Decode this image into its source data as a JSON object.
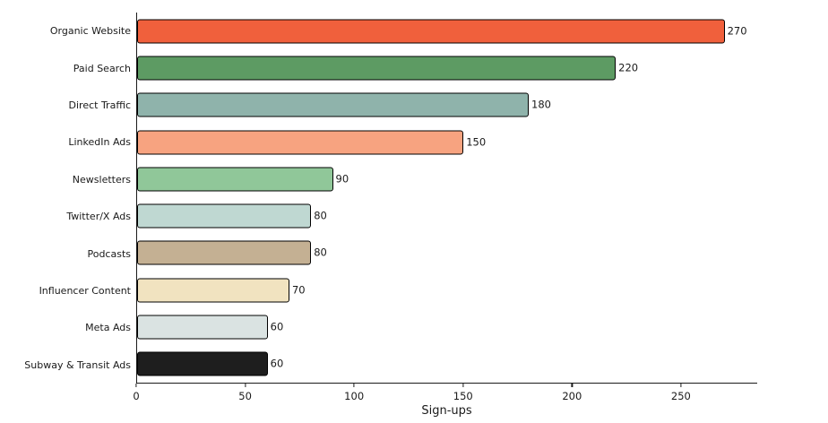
{
  "chart_data": {
    "type": "bar",
    "orientation": "horizontal",
    "title": "",
    "xlabel": "Sign-ups",
    "ylabel": "",
    "categories": [
      "Organic Website",
      "Paid Search",
      "Direct Traffic",
      "LinkedIn Ads",
      "Newsletters",
      "Twitter/X Ads",
      "Podcasts",
      "Influencer Content",
      "Meta Ads",
      "Subway & Transit Ads"
    ],
    "values": [
      270,
      220,
      180,
      150,
      90,
      80,
      80,
      70,
      60,
      60
    ],
    "value_labels": [
      "270",
      "220",
      "180",
      "150",
      "90",
      "80",
      "80",
      "70",
      "60",
      "60"
    ],
    "bar_colors": [
      "#f0603c",
      "#5d9b63",
      "#8fb3ab",
      "#f7a380",
      "#90c799",
      "#bfd8d2",
      "#c4b093",
      "#f1e3c0",
      "#dae3e2",
      "#1e1e1e"
    ],
    "bar_edge_color": "#000000",
    "x_ticks": [
      "0",
      "50",
      "100",
      "150",
      "200",
      "250"
    ],
    "x_tick_values": [
      0,
      50,
      100,
      150,
      200,
      250
    ],
    "xlim": [
      0,
      285
    ],
    "grid": false,
    "legend_position": "none"
  }
}
